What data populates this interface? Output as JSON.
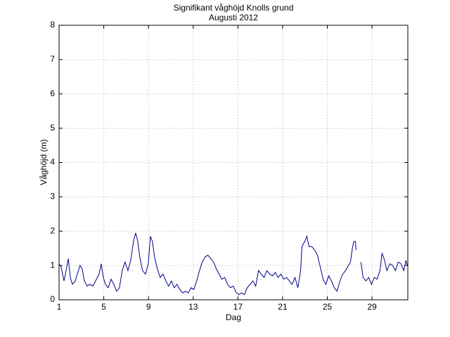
{
  "chart_data": {
    "type": "line",
    "title": "Signifikant våghöjd Knolls grund",
    "subtitle": "Augusti 2012",
    "xlabel": "Dag",
    "ylabel": "Våghöjd (m)",
    "xlim": [
      1,
      32.2
    ],
    "xticks": [
      1,
      5,
      9,
      13,
      17,
      21,
      25,
      29
    ],
    "ylim": [
      0,
      8
    ],
    "yticks": [
      0,
      1,
      2,
      3,
      4,
      5,
      6,
      7,
      8
    ],
    "grid": true,
    "series": [
      {
        "color": "#00008b",
        "x": [
          1.0,
          1.19,
          1.44,
          1.63,
          1.82,
          2.01,
          2.19,
          2.45,
          2.63,
          2.88,
          3.07,
          3.26,
          3.51,
          3.76,
          4.02,
          4.27,
          4.58,
          4.77,
          4.96,
          5.15,
          5.4,
          5.65,
          5.9,
          6.15,
          6.4,
          6.65,
          6.9,
          7.16,
          7.41,
          7.66,
          7.85,
          8.04,
          8.22,
          8.47,
          8.73,
          8.98,
          9.17,
          9.35,
          9.54,
          9.79,
          10.05,
          10.3,
          10.55,
          10.8,
          11.05,
          11.3,
          11.55,
          11.8,
          12.06,
          12.31,
          12.56,
          12.81,
          13.06,
          13.31,
          13.56,
          13.81,
          14.07,
          14.32,
          14.57,
          14.82,
          15.07,
          15.32,
          15.57,
          15.82,
          16.08,
          16.33,
          16.58,
          16.83,
          17.08,
          17.33,
          17.58,
          17.83,
          18.09,
          18.34,
          18.59,
          18.84,
          19.09,
          19.34,
          19.59,
          19.84,
          20.1,
          20.35,
          20.6,
          20.85,
          21.1,
          21.35,
          21.6,
          21.85,
          22.11,
          22.36,
          22.61,
          22.73,
          22.98,
          23.17,
          23.36,
          23.61,
          23.86,
          24.12,
          24.37,
          24.62,
          24.87,
          25.12,
          25.37,
          25.62,
          25.87,
          26.13,
          26.38,
          26.63,
          26.88,
          27.07,
          27.26,
          27.38,
          27.51,
          27.57,
          null,
          28.01,
          28.2,
          28.45,
          28.7,
          28.95,
          29.2,
          29.45,
          29.71,
          29.89,
          30.08,
          30.33,
          30.58,
          30.84,
          31.09,
          31.34,
          31.59,
          31.84,
          32.03,
          32.16
        ],
        "values": [
          1.05,
          0.95,
          0.55,
          0.85,
          1.2,
          0.65,
          0.45,
          0.55,
          0.75,
          1.0,
          0.9,
          0.55,
          0.4,
          0.45,
          0.4,
          0.55,
          0.75,
          1.05,
          0.65,
          0.45,
          0.35,
          0.6,
          0.45,
          0.25,
          0.35,
          0.85,
          1.1,
          0.85,
          1.15,
          1.7,
          1.95,
          1.7,
          1.25,
          0.85,
          0.75,
          1.05,
          1.85,
          1.7,
          1.25,
          0.9,
          0.65,
          0.75,
          0.55,
          0.4,
          0.55,
          0.35,
          0.45,
          0.3,
          0.2,
          0.25,
          0.2,
          0.35,
          0.3,
          0.55,
          0.85,
          1.1,
          1.25,
          1.3,
          1.2,
          1.1,
          0.9,
          0.75,
          0.6,
          0.65,
          0.45,
          0.35,
          0.4,
          0.22,
          0.15,
          0.2,
          0.15,
          0.35,
          0.45,
          0.55,
          0.4,
          0.85,
          0.75,
          0.65,
          0.85,
          0.75,
          0.7,
          0.8,
          0.65,
          0.75,
          0.6,
          0.65,
          0.55,
          0.45,
          0.65,
          0.35,
          0.85,
          1.55,
          1.7,
          1.85,
          1.55,
          1.55,
          1.45,
          1.3,
          0.95,
          0.6,
          0.45,
          0.7,
          0.55,
          0.35,
          0.25,
          0.55,
          0.75,
          0.85,
          1.0,
          1.1,
          1.55,
          1.7,
          1.7,
          1.45,
          null,
          1.1,
          0.65,
          0.55,
          0.65,
          0.45,
          0.65,
          0.6,
          0.85,
          1.35,
          1.2,
          0.85,
          1.05,
          1.0,
          0.85,
          1.1,
          1.05,
          0.85,
          1.15,
          1.0
        ]
      }
    ]
  }
}
